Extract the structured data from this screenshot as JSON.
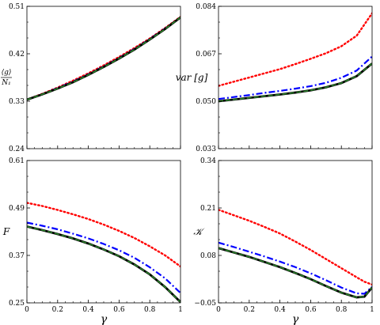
{
  "chart_data": [
    {
      "type": "line",
      "ylabel_num": "⟨g⟩",
      "ylabel_den": "N₁",
      "xlabel": "",
      "xlim": [
        0,
        1
      ],
      "ylim": [
        0.24,
        0.51
      ],
      "xticks": [],
      "yticks": [
        "0.24",
        "0.33",
        "0.42",
        "0.51"
      ],
      "x": [
        0,
        0.1,
        0.2,
        0.3,
        0.4,
        0.5,
        0.6,
        0.7,
        0.8,
        0.9,
        1.0
      ],
      "series": [
        {
          "color": "#ff0000",
          "style": "dotted",
          "values": [
            0.333,
            0.344,
            0.356,
            0.369,
            0.383,
            0.398,
            0.414,
            0.431,
            0.449,
            0.469,
            0.49
          ]
        },
        {
          "color": "#0000ff",
          "style": "dashdot",
          "values": [
            0.333,
            0.343,
            0.355,
            0.367,
            0.381,
            0.396,
            0.412,
            0.429,
            0.448,
            0.468,
            0.489
          ]
        },
        {
          "color": "#000000",
          "style": "solid",
          "values": [
            0.333,
            0.343,
            0.354,
            0.366,
            0.38,
            0.395,
            0.411,
            0.428,
            0.447,
            0.467,
            0.489
          ]
        },
        {
          "color": "#2e8b2e",
          "style": "dashed",
          "values": [
            0.333,
            0.343,
            0.354,
            0.366,
            0.38,
            0.395,
            0.411,
            0.428,
            0.447,
            0.467,
            0.489
          ]
        }
      ]
    },
    {
      "type": "line",
      "ylabel": "var [g]",
      "xlabel": "",
      "xlim": [
        0,
        1
      ],
      "ylim": [
        0.033,
        0.084
      ],
      "xticks": [],
      "yticks": [
        "0.033",
        "0.050",
        "0.067",
        "0.084"
      ],
      "x": [
        0,
        0.1,
        0.2,
        0.3,
        0.4,
        0.5,
        0.6,
        0.7,
        0.8,
        0.9,
        1.0
      ],
      "series": [
        {
          "color": "#ff0000",
          "style": "dotted",
          "values": [
            0.0555,
            0.057,
            0.0585,
            0.06,
            0.0615,
            0.0633,
            0.0652,
            0.0672,
            0.0697,
            0.0735,
            0.0815
          ]
        },
        {
          "color": "#0000ff",
          "style": "dashdot",
          "values": [
            0.0508,
            0.0515,
            0.0522,
            0.053,
            0.0537,
            0.0545,
            0.0554,
            0.0566,
            0.0584,
            0.061,
            0.066
          ]
        },
        {
          "color": "#000000",
          "style": "solid",
          "values": [
            0.05,
            0.0506,
            0.0512,
            0.0518,
            0.0524,
            0.0531,
            0.0539,
            0.055,
            0.0565,
            0.059,
            0.0635
          ]
        },
        {
          "color": "#2e8b2e",
          "style": "dashed",
          "values": [
            0.05,
            0.0506,
            0.0512,
            0.0518,
            0.0524,
            0.0531,
            0.0539,
            0.055,
            0.0565,
            0.059,
            0.0635
          ]
        }
      ]
    },
    {
      "type": "line",
      "ylabel": "F",
      "xlabel": "γ",
      "xlim": [
        0,
        1
      ],
      "ylim": [
        0.25,
        0.61
      ],
      "xticks": [
        "0",
        "0.2",
        "0.4",
        "0.6",
        "0.8",
        "1"
      ],
      "yticks": [
        "0.25",
        "0.37",
        "0.49",
        "0.61"
      ],
      "x": [
        0,
        0.1,
        0.2,
        0.3,
        0.4,
        0.5,
        0.6,
        0.7,
        0.8,
        0.9,
        1.0
      ],
      "series": [
        {
          "color": "#ff0000",
          "style": "dotted",
          "values": [
            0.503,
            0.495,
            0.485,
            0.474,
            0.462,
            0.448,
            0.432,
            0.414,
            0.393,
            0.37,
            0.342
          ]
        },
        {
          "color": "#0000ff",
          "style": "dashdot",
          "values": [
            0.453,
            0.445,
            0.436,
            0.425,
            0.413,
            0.399,
            0.383,
            0.364,
            0.34,
            0.312,
            0.275
          ]
        },
        {
          "color": "#000000",
          "style": "solid",
          "values": [
            0.443,
            0.434,
            0.424,
            0.413,
            0.4,
            0.385,
            0.368,
            0.347,
            0.322,
            0.29,
            0.252
          ]
        },
        {
          "color": "#2e8b2e",
          "style": "dashed",
          "values": [
            0.443,
            0.434,
            0.424,
            0.413,
            0.4,
            0.385,
            0.368,
            0.347,
            0.322,
            0.29,
            0.252
          ]
        }
      ]
    },
    {
      "type": "line",
      "ylabel": "𝒦",
      "xlabel": "γ",
      "xlim": [
        0,
        1
      ],
      "ylim": [
        -0.05,
        0.34
      ],
      "xticks": [
        "0",
        "0.2",
        "0.4",
        "0.6",
        "0.8",
        "1"
      ],
      "yticks": [
        "−0.05",
        "0.08",
        "0.21",
        "0.34"
      ],
      "x": [
        0,
        0.1,
        0.2,
        0.3,
        0.4,
        0.5,
        0.6,
        0.7,
        0.8,
        0.9,
        0.95,
        1.0
      ],
      "series": [
        {
          "color": "#ff0000",
          "style": "dotted",
          "values": [
            0.205,
            0.19,
            0.175,
            0.158,
            0.14,
            0.118,
            0.095,
            0.07,
            0.045,
            0.02,
            0.008,
            0.0
          ]
        },
        {
          "color": "#0000ff",
          "style": "dashdot",
          "values": [
            0.115,
            0.103,
            0.09,
            0.077,
            0.063,
            0.048,
            0.031,
            0.012,
            -0.008,
            -0.024,
            -0.025,
            -0.006
          ]
        },
        {
          "color": "#000000",
          "style": "solid",
          "values": [
            0.1,
            0.088,
            0.076,
            0.062,
            0.048,
            0.032,
            0.015,
            -0.004,
            -0.022,
            -0.035,
            -0.033,
            -0.008
          ]
        },
        {
          "color": "#2e8b2e",
          "style": "dashed",
          "values": [
            0.1,
            0.088,
            0.076,
            0.062,
            0.048,
            0.032,
            0.015,
            -0.004,
            -0.022,
            -0.035,
            -0.033,
            -0.008
          ]
        }
      ]
    }
  ]
}
